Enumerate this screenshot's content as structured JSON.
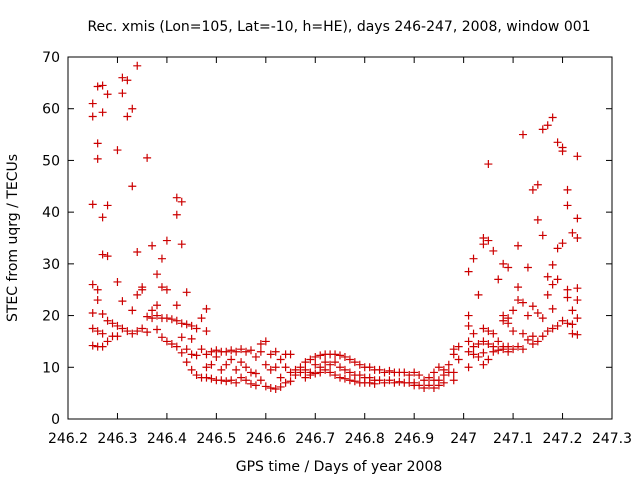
{
  "chart_data": {
    "type": "scatter",
    "title": "Rec. xmis (Lon=105, Lat=-10, h=HE), days 246-247, 2008, window 001",
    "xlabel": "GPS time / Days of year 2008",
    "ylabel": "STEC from uqrg / TECUs",
    "xlim": [
      246.2,
      247.3
    ],
    "ylim": [
      0,
      70
    ],
    "xticks": [
      246.2,
      246.3,
      246.4,
      246.5,
      246.6,
      246.7,
      246.8,
      246.9,
      247,
      247.1,
      247.2,
      247.3
    ],
    "xtick_labels": [
      "246.2",
      "246.3",
      "246.4",
      "246.5",
      "246.6",
      "246.7",
      "246.8",
      "246.9",
      "247",
      "247.1",
      "247.2",
      "247.3"
    ],
    "yticks": [
      0,
      10,
      20,
      30,
      40,
      50,
      60,
      70
    ],
    "ytick_labels": [
      "0",
      "10",
      "20",
      "30",
      "40",
      "50",
      "60",
      "70"
    ],
    "grid": false,
    "legend": "none",
    "marker": "+",
    "color": "#cc0000",
    "points": [
      [
        246.25,
        61.0
      ],
      [
        246.25,
        58.5
      ],
      [
        246.25,
        41.5
      ],
      [
        246.25,
        26.0
      ],
      [
        246.25,
        20.5
      ],
      [
        246.25,
        17.5
      ],
      [
        246.25,
        14.2
      ],
      [
        246.26,
        64.3
      ],
      [
        246.26,
        53.3
      ],
      [
        246.26,
        50.3
      ],
      [
        246.26,
        25.0
      ],
      [
        246.26,
        23.0
      ],
      [
        246.26,
        17.0
      ],
      [
        246.26,
        14.0
      ],
      [
        246.27,
        64.5
      ],
      [
        246.27,
        59.3
      ],
      [
        246.27,
        39.0
      ],
      [
        246.27,
        31.8
      ],
      [
        246.27,
        20.3
      ],
      [
        246.27,
        16.5
      ],
      [
        246.27,
        14.0
      ],
      [
        246.28,
        62.8
      ],
      [
        246.28,
        41.3
      ],
      [
        246.28,
        31.5
      ],
      [
        246.28,
        19.0
      ],
      [
        246.28,
        15.0
      ],
      [
        246.29,
        18.5
      ],
      [
        246.29,
        16.0
      ],
      [
        246.3,
        52.0
      ],
      [
        246.3,
        26.5
      ],
      [
        246.3,
        18.0
      ],
      [
        246.3,
        16.0
      ],
      [
        246.31,
        66.0
      ],
      [
        246.31,
        63.0
      ],
      [
        246.31,
        22.8
      ],
      [
        246.31,
        17.5
      ],
      [
        246.32,
        65.5
      ],
      [
        246.32,
        58.5
      ],
      [
        246.32,
        17.0
      ],
      [
        246.33,
        60.0
      ],
      [
        246.33,
        45.0
      ],
      [
        246.33,
        21.0
      ],
      [
        246.33,
        16.5
      ],
      [
        246.34,
        68.3
      ],
      [
        246.34,
        32.3
      ],
      [
        246.34,
        24.0
      ],
      [
        246.34,
        17.0
      ],
      [
        246.35,
        25.5
      ],
      [
        246.35,
        25.0
      ],
      [
        246.35,
        17.5
      ],
      [
        246.36,
        50.5
      ],
      [
        246.36,
        19.8
      ],
      [
        246.36,
        16.8
      ],
      [
        246.37,
        33.5
      ],
      [
        246.37,
        21.0
      ],
      [
        246.37,
        19.5
      ],
      [
        246.38,
        28.0
      ],
      [
        246.38,
        22.0
      ],
      [
        246.38,
        20.0
      ],
      [
        246.38,
        17.3
      ],
      [
        246.39,
        31.0
      ],
      [
        246.39,
        25.5
      ],
      [
        246.39,
        19.5
      ],
      [
        246.39,
        15.8
      ],
      [
        246.4,
        34.5
      ],
      [
        246.4,
        25.0
      ],
      [
        246.4,
        19.5
      ],
      [
        246.4,
        15.0
      ],
      [
        246.41,
        19.3
      ],
      [
        246.41,
        14.5
      ],
      [
        246.42,
        42.8
      ],
      [
        246.42,
        39.5
      ],
      [
        246.42,
        22.0
      ],
      [
        246.42,
        19.0
      ],
      [
        246.42,
        14.0
      ],
      [
        246.43,
        42.0
      ],
      [
        246.43,
        33.8
      ],
      [
        246.43,
        18.5
      ],
      [
        246.43,
        15.8
      ],
      [
        246.43,
        12.8
      ],
      [
        246.44,
        24.5
      ],
      [
        246.44,
        18.3
      ],
      [
        246.44,
        13.5
      ],
      [
        246.44,
        11.0
      ],
      [
        246.45,
        18.0
      ],
      [
        246.45,
        15.5
      ],
      [
        246.45,
        12.5
      ],
      [
        246.45,
        9.5
      ],
      [
        246.46,
        17.5
      ],
      [
        246.46,
        12.3
      ],
      [
        246.46,
        8.5
      ],
      [
        246.47,
        19.5
      ],
      [
        246.47,
        13.5
      ],
      [
        246.47,
        8.0
      ],
      [
        246.48,
        21.3
      ],
      [
        246.48,
        17.0
      ],
      [
        246.48,
        12.5
      ],
      [
        246.48,
        10.0
      ],
      [
        246.48,
        8.0
      ],
      [
        246.49,
        13.0
      ],
      [
        246.49,
        10.5
      ],
      [
        246.49,
        7.8
      ],
      [
        246.5,
        13.3
      ],
      [
        246.5,
        12.0
      ],
      [
        246.5,
        7.5
      ],
      [
        246.51,
        13.0
      ],
      [
        246.51,
        9.5
      ],
      [
        246.51,
        7.5
      ],
      [
        246.52,
        13.0
      ],
      [
        246.52,
        10.5
      ],
      [
        246.52,
        7.3
      ],
      [
        246.53,
        13.3
      ],
      [
        246.53,
        11.5
      ],
      [
        246.53,
        7.5
      ],
      [
        246.54,
        13.0
      ],
      [
        246.54,
        9.5
      ],
      [
        246.54,
        7.0
      ],
      [
        246.55,
        13.5
      ],
      [
        246.55,
        11.0
      ],
      [
        246.55,
        8.0
      ],
      [
        246.56,
        13.0
      ],
      [
        246.56,
        10.0
      ],
      [
        246.56,
        7.5
      ],
      [
        246.57,
        13.3
      ],
      [
        246.57,
        9.0
      ],
      [
        246.57,
        6.8
      ],
      [
        246.58,
        12.0
      ],
      [
        246.58,
        8.8
      ],
      [
        246.58,
        6.5
      ],
      [
        246.59,
        14.5
      ],
      [
        246.59,
        13.0
      ],
      [
        246.59,
        7.5
      ],
      [
        246.6,
        15.0
      ],
      [
        246.6,
        10.5
      ],
      [
        246.6,
        6.3
      ],
      [
        246.61,
        12.5
      ],
      [
        246.61,
        9.5
      ],
      [
        246.61,
        6.0
      ],
      [
        246.62,
        13.0
      ],
      [
        246.62,
        10.0
      ],
      [
        246.62,
        5.8
      ],
      [
        246.63,
        11.5
      ],
      [
        246.63,
        8.0
      ],
      [
        246.63,
        6.2
      ],
      [
        246.64,
        12.5
      ],
      [
        246.64,
        10.0
      ],
      [
        246.64,
        7.0
      ],
      [
        246.65,
        12.5
      ],
      [
        246.65,
        9.0
      ],
      [
        246.65,
        7.3
      ],
      [
        246.66,
        9.5
      ],
      [
        246.66,
        8.5
      ],
      [
        246.67,
        10.0
      ],
      [
        246.67,
        9.0
      ],
      [
        246.68,
        11.0
      ],
      [
        246.68,
        9.5
      ],
      [
        246.68,
        8.0
      ],
      [
        246.69,
        11.5
      ],
      [
        246.69,
        9.0
      ],
      [
        246.69,
        8.5
      ],
      [
        246.7,
        12.0
      ],
      [
        246.7,
        10.5
      ],
      [
        246.7,
        8.8
      ],
      [
        246.71,
        12.3
      ],
      [
        246.71,
        10.0
      ],
      [
        246.71,
        9.0
      ],
      [
        246.72,
        12.5
      ],
      [
        246.72,
        11.0
      ],
      [
        246.72,
        9.5
      ],
      [
        246.73,
        12.5
      ],
      [
        246.73,
        10.5
      ],
      [
        246.73,
        9.0
      ],
      [
        246.74,
        12.5
      ],
      [
        246.74,
        11.0
      ],
      [
        246.74,
        8.5
      ],
      [
        246.75,
        12.3
      ],
      [
        246.75,
        10.0
      ],
      [
        246.75,
        8.0
      ],
      [
        246.76,
        12.0
      ],
      [
        246.76,
        9.5
      ],
      [
        246.76,
        7.8
      ],
      [
        246.77,
        11.5
      ],
      [
        246.77,
        9.0
      ],
      [
        246.77,
        7.5
      ],
      [
        246.78,
        11.0
      ],
      [
        246.78,
        8.5
      ],
      [
        246.78,
        7.3
      ],
      [
        246.79,
        10.5
      ],
      [
        246.79,
        8.5
      ],
      [
        246.79,
        7.0
      ],
      [
        246.8,
        10.0
      ],
      [
        246.8,
        8.0
      ],
      [
        246.8,
        7.0
      ],
      [
        246.81,
        10.0
      ],
      [
        246.81,
        8.0
      ],
      [
        246.81,
        7.0
      ],
      [
        246.82,
        9.5
      ],
      [
        246.82,
        7.5
      ],
      [
        246.82,
        6.8
      ],
      [
        246.83,
        9.5
      ],
      [
        246.83,
        7.5
      ],
      [
        246.84,
        9.0
      ],
      [
        246.84,
        7.0
      ],
      [
        246.85,
        9.3
      ],
      [
        246.85,
        7.5
      ],
      [
        246.86,
        9.0
      ],
      [
        246.86,
        7.0
      ],
      [
        246.87,
        9.0
      ],
      [
        246.87,
        7.2
      ],
      [
        246.88,
        9.0
      ],
      [
        246.88,
        7.0
      ],
      [
        246.89,
        8.5
      ],
      [
        246.89,
        7.0
      ],
      [
        246.9,
        9.0
      ],
      [
        246.9,
        7.0
      ],
      [
        246.9,
        6.5
      ],
      [
        246.91,
        8.5
      ],
      [
        246.91,
        6.5
      ],
      [
        246.92,
        7.5
      ],
      [
        246.92,
        6.0
      ],
      [
        246.93,
        8.0
      ],
      [
        246.93,
        6.5
      ],
      [
        246.94,
        9.0
      ],
      [
        246.94,
        7.5
      ],
      [
        246.94,
        6.0
      ],
      [
        246.95,
        10.0
      ],
      [
        246.95,
        7.5
      ],
      [
        246.95,
        6.5
      ],
      [
        246.96,
        9.5
      ],
      [
        246.96,
        8.5
      ],
      [
        246.96,
        7.0
      ],
      [
        246.97,
        10.5
      ],
      [
        246.97,
        9.0
      ],
      [
        246.98,
        13.5
      ],
      [
        246.98,
        12.5
      ],
      [
        246.98,
        9.0
      ],
      [
        246.98,
        7.5
      ],
      [
        246.99,
        14.0
      ],
      [
        246.99,
        11.5
      ],
      [
        247.01,
        28.5
      ],
      [
        247.01,
        20.0
      ],
      [
        247.01,
        18.0
      ],
      [
        247.01,
        15.0
      ],
      [
        247.01,
        13.0
      ],
      [
        247.01,
        10.0
      ],
      [
        247.02,
        31.0
      ],
      [
        247.02,
        16.5
      ],
      [
        247.02,
        14.0
      ],
      [
        247.02,
        12.5
      ],
      [
        247.03,
        24.0
      ],
      [
        247.03,
        14.5
      ],
      [
        247.03,
        12.0
      ],
      [
        247.04,
        35.0
      ],
      [
        247.04,
        33.8
      ],
      [
        247.04,
        17.5
      ],
      [
        247.04,
        15.0
      ],
      [
        247.04,
        12.8
      ],
      [
        247.04,
        10.5
      ],
      [
        247.05,
        34.5
      ],
      [
        247.05,
        49.3
      ],
      [
        247.05,
        17.0
      ],
      [
        247.05,
        14.5
      ],
      [
        247.05,
        11.5
      ],
      [
        247.06,
        32.5
      ],
      [
        247.06,
        16.5
      ],
      [
        247.06,
        14.0
      ],
      [
        247.06,
        13.0
      ],
      [
        247.07,
        27.0
      ],
      [
        247.07,
        15.0
      ],
      [
        247.07,
        13.3
      ],
      [
        247.08,
        30.0
      ],
      [
        247.08,
        20.0
      ],
      [
        247.08,
        19.0
      ],
      [
        247.08,
        14.0
      ],
      [
        247.08,
        13.5
      ],
      [
        247.09,
        29.3
      ],
      [
        247.09,
        19.5
      ],
      [
        247.09,
        18.5
      ],
      [
        247.09,
        14.0
      ],
      [
        247.09,
        13.0
      ],
      [
        247.1,
        21.0
      ],
      [
        247.1,
        17.0
      ],
      [
        247.1,
        13.5
      ],
      [
        247.11,
        33.5
      ],
      [
        247.11,
        25.5
      ],
      [
        247.11,
        23.0
      ],
      [
        247.11,
        14.0
      ],
      [
        247.12,
        55.0
      ],
      [
        247.12,
        22.5
      ],
      [
        247.12,
        16.5
      ],
      [
        247.12,
        13.5
      ],
      [
        247.13,
        29.3
      ],
      [
        247.13,
        20.0
      ],
      [
        247.13,
        15.3
      ],
      [
        247.14,
        44.3
      ],
      [
        247.14,
        21.8
      ],
      [
        247.14,
        16.0
      ],
      [
        247.14,
        14.5
      ],
      [
        247.15,
        45.3
      ],
      [
        247.15,
        38.5
      ],
      [
        247.15,
        20.5
      ],
      [
        247.15,
        15.0
      ],
      [
        247.16,
        56.0
      ],
      [
        247.16,
        35.5
      ],
      [
        247.16,
        19.5
      ],
      [
        247.16,
        16.0
      ],
      [
        247.17,
        56.8
      ],
      [
        247.17,
        27.5
      ],
      [
        247.17,
        24.0
      ],
      [
        247.17,
        17.0
      ],
      [
        247.18,
        58.3
      ],
      [
        247.18,
        29.8
      ],
      [
        247.18,
        26.0
      ],
      [
        247.18,
        21.3
      ],
      [
        247.18,
        17.5
      ],
      [
        247.19,
        53.5
      ],
      [
        247.19,
        33.0
      ],
      [
        247.19,
        27.0
      ],
      [
        247.19,
        18.0
      ],
      [
        247.2,
        52.5
      ],
      [
        247.2,
        51.8
      ],
      [
        247.2,
        34.0
      ],
      [
        247.2,
        19.0
      ],
      [
        247.21,
        44.3
      ],
      [
        247.21,
        41.3
      ],
      [
        247.21,
        25.0
      ],
      [
        247.21,
        23.5
      ],
      [
        247.21,
        18.5
      ],
      [
        247.22,
        36.0
      ],
      [
        247.22,
        21.0
      ],
      [
        247.22,
        18.3
      ],
      [
        247.22,
        16.5
      ],
      [
        247.23,
        50.8
      ],
      [
        247.23,
        38.8
      ],
      [
        247.23,
        35.0
      ],
      [
        247.23,
        25.3
      ],
      [
        247.23,
        23.0
      ],
      [
        247.23,
        19.5
      ],
      [
        247.23,
        16.3
      ]
    ]
  }
}
